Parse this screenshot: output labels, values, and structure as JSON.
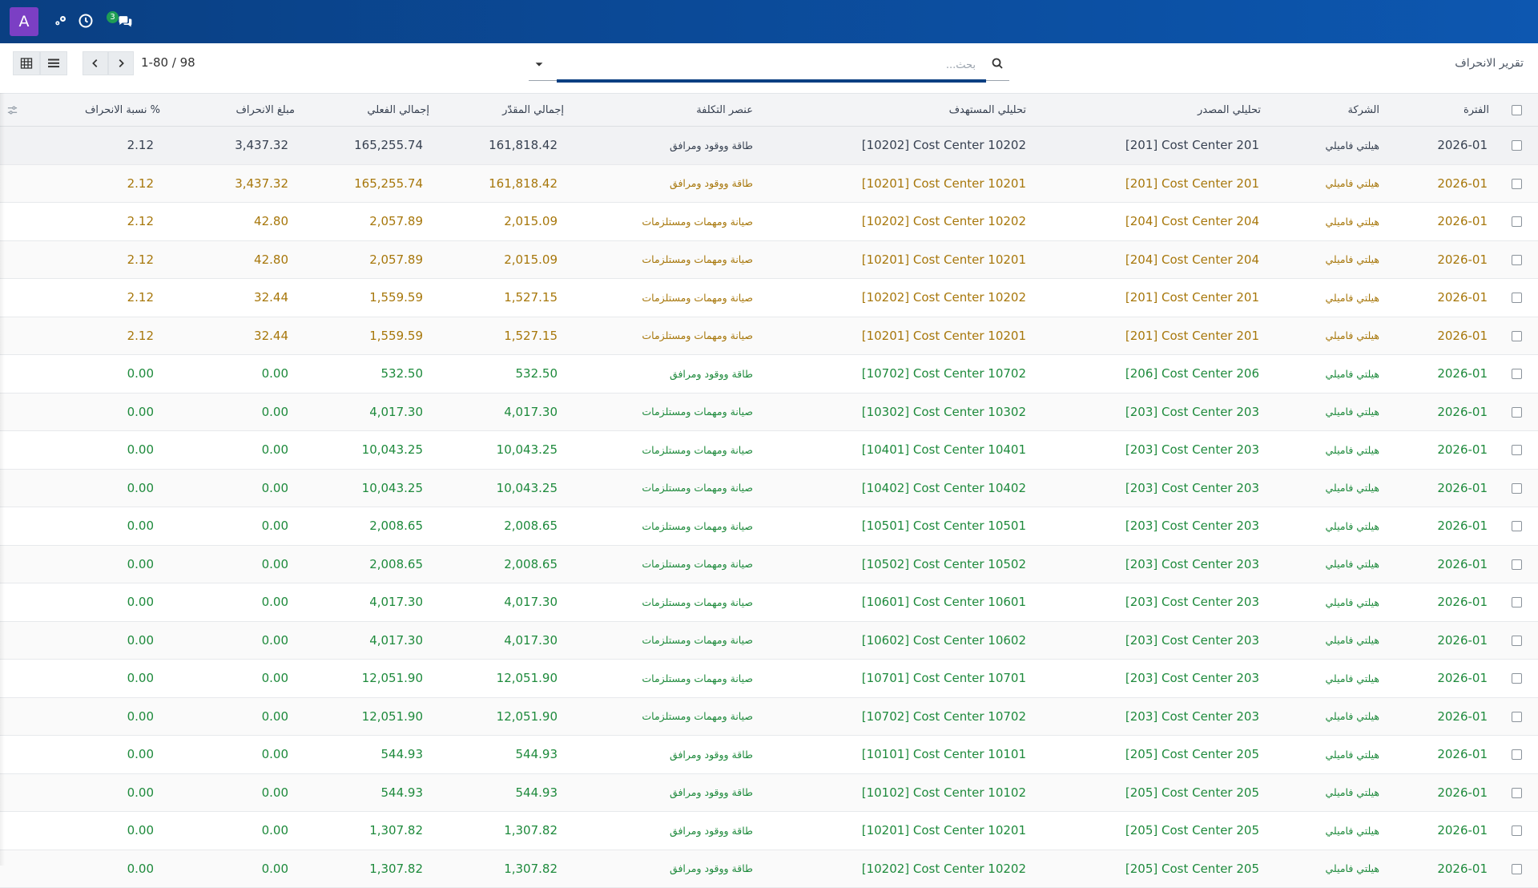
{
  "navbar": {
    "avatar_letter": "A",
    "icons": [
      "activity-icon",
      "clock-icon",
      "chat-icon"
    ],
    "chat_badge": "3",
    "background": "#0b4a98"
  },
  "control_panel": {
    "breadcrumb": "تقرير الانحراف",
    "search_placeholder": "بحث...",
    "pager_value": "1-80 / 98",
    "view_buttons": [
      "list-view-icon",
      "pivot-view-icon"
    ]
  },
  "table": {
    "headers": {
      "period": "الفترة",
      "company": "الشركة",
      "source": "تحليلي المصدر",
      "target": "تحليلي المستهدف",
      "cost_element": "عنصر التكلفة",
      "estimated": "إجمالي المقدّر",
      "actual": "إجمالي الفعلي",
      "variance": "مبلغ الانحراف",
      "variance_pct": "نسبة الانحراف %"
    },
    "colors": {
      "default": "#374151",
      "warning": "#a7770b",
      "success": "#1e8a3c"
    },
    "rows": [
      {
        "status": "default",
        "period": "2026-01",
        "company": "هيلتي فاميلي",
        "source": "[201] Cost Center 201",
        "target": "[10202] Cost Center 10202",
        "cost_element": "طاقة ووقود ومرافق",
        "estimated": "161,818.42",
        "actual": "165,255.74",
        "variance": "3,437.32",
        "variance_pct": "2.12"
      },
      {
        "status": "warning",
        "period": "2026-01",
        "company": "هيلتي فاميلي",
        "source": "[201] Cost Center 201",
        "target": "[10201] Cost Center 10201",
        "cost_element": "طاقة ووقود ومرافق",
        "estimated": "161,818.42",
        "actual": "165,255.74",
        "variance": "3,437.32",
        "variance_pct": "2.12"
      },
      {
        "status": "warning",
        "period": "2026-01",
        "company": "هيلتي فاميلي",
        "source": "[204] Cost Center 204",
        "target": "[10202] Cost Center 10202",
        "cost_element": "صيانة ومهمات ومستلزمات",
        "estimated": "2,015.09",
        "actual": "2,057.89",
        "variance": "42.80",
        "variance_pct": "2.12"
      },
      {
        "status": "warning",
        "period": "2026-01",
        "company": "هيلتي فاميلي",
        "source": "[204] Cost Center 204",
        "target": "[10201] Cost Center 10201",
        "cost_element": "صيانة ومهمات ومستلزمات",
        "estimated": "2,015.09",
        "actual": "2,057.89",
        "variance": "42.80",
        "variance_pct": "2.12"
      },
      {
        "status": "warning",
        "period": "2026-01",
        "company": "هيلتي فاميلي",
        "source": "[201] Cost Center 201",
        "target": "[10202] Cost Center 10202",
        "cost_element": "صيانة ومهمات ومستلزمات",
        "estimated": "1,527.15",
        "actual": "1,559.59",
        "variance": "32.44",
        "variance_pct": "2.12"
      },
      {
        "status": "warning",
        "period": "2026-01",
        "company": "هيلتي فاميلي",
        "source": "[201] Cost Center 201",
        "target": "[10201] Cost Center 10201",
        "cost_element": "صيانة ومهمات ومستلزمات",
        "estimated": "1,527.15",
        "actual": "1,559.59",
        "variance": "32.44",
        "variance_pct": "2.12"
      },
      {
        "status": "success",
        "period": "2026-01",
        "company": "هيلتي فاميلي",
        "source": "[206] Cost Center 206",
        "target": "[10702] Cost Center 10702",
        "cost_element": "طاقة ووقود ومرافق",
        "estimated": "532.50",
        "actual": "532.50",
        "variance": "0.00",
        "variance_pct": "0.00"
      },
      {
        "status": "success",
        "period": "2026-01",
        "company": "هيلتي فاميلي",
        "source": "[203] Cost Center 203",
        "target": "[10302] Cost Center 10302",
        "cost_element": "صيانة ومهمات ومستلزمات",
        "estimated": "4,017.30",
        "actual": "4,017.30",
        "variance": "0.00",
        "variance_pct": "0.00"
      },
      {
        "status": "success",
        "period": "2026-01",
        "company": "هيلتي فاميلي",
        "source": "[203] Cost Center 203",
        "target": "[10401] Cost Center 10401",
        "cost_element": "صيانة ومهمات ومستلزمات",
        "estimated": "10,043.25",
        "actual": "10,043.25",
        "variance": "0.00",
        "variance_pct": "0.00"
      },
      {
        "status": "success",
        "period": "2026-01",
        "company": "هيلتي فاميلي",
        "source": "[203] Cost Center 203",
        "target": "[10402] Cost Center 10402",
        "cost_element": "صيانة ومهمات ومستلزمات",
        "estimated": "10,043.25",
        "actual": "10,043.25",
        "variance": "0.00",
        "variance_pct": "0.00"
      },
      {
        "status": "success",
        "period": "2026-01",
        "company": "هيلتي فاميلي",
        "source": "[203] Cost Center 203",
        "target": "[10501] Cost Center 10501",
        "cost_element": "صيانة ومهمات ومستلزمات",
        "estimated": "2,008.65",
        "actual": "2,008.65",
        "variance": "0.00",
        "variance_pct": "0.00"
      },
      {
        "status": "success",
        "period": "2026-01",
        "company": "هيلتي فاميلي",
        "source": "[203] Cost Center 203",
        "target": "[10502] Cost Center 10502",
        "cost_element": "صيانة ومهمات ومستلزمات",
        "estimated": "2,008.65",
        "actual": "2,008.65",
        "variance": "0.00",
        "variance_pct": "0.00"
      },
      {
        "status": "success",
        "period": "2026-01",
        "company": "هيلتي فاميلي",
        "source": "[203] Cost Center 203",
        "target": "[10601] Cost Center 10601",
        "cost_element": "صيانة ومهمات ومستلزمات",
        "estimated": "4,017.30",
        "actual": "4,017.30",
        "variance": "0.00",
        "variance_pct": "0.00"
      },
      {
        "status": "success",
        "period": "2026-01",
        "company": "هيلتي فاميلي",
        "source": "[203] Cost Center 203",
        "target": "[10602] Cost Center 10602",
        "cost_element": "صيانة ومهمات ومستلزمات",
        "estimated": "4,017.30",
        "actual": "4,017.30",
        "variance": "0.00",
        "variance_pct": "0.00"
      },
      {
        "status": "success",
        "period": "2026-01",
        "company": "هيلتي فاميلي",
        "source": "[203] Cost Center 203",
        "target": "[10701] Cost Center 10701",
        "cost_element": "صيانة ومهمات ومستلزمات",
        "estimated": "12,051.90",
        "actual": "12,051.90",
        "variance": "0.00",
        "variance_pct": "0.00"
      },
      {
        "status": "success",
        "period": "2026-01",
        "company": "هيلتي فاميلي",
        "source": "[203] Cost Center 203",
        "target": "[10702] Cost Center 10702",
        "cost_element": "صيانة ومهمات ومستلزمات",
        "estimated": "12,051.90",
        "actual": "12,051.90",
        "variance": "0.00",
        "variance_pct": "0.00"
      },
      {
        "status": "success",
        "period": "2026-01",
        "company": "هيلتي فاميلي",
        "source": "[205] Cost Center 205",
        "target": "[10101] Cost Center 10101",
        "cost_element": "طاقة ووقود ومرافق",
        "estimated": "544.93",
        "actual": "544.93",
        "variance": "0.00",
        "variance_pct": "0.00"
      },
      {
        "status": "success",
        "period": "2026-01",
        "company": "هيلتي فاميلي",
        "source": "[205] Cost Center 205",
        "target": "[10102] Cost Center 10102",
        "cost_element": "طاقة ووقود ومرافق",
        "estimated": "544.93",
        "actual": "544.93",
        "variance": "0.00",
        "variance_pct": "0.00"
      },
      {
        "status": "success",
        "period": "2026-01",
        "company": "هيلتي فاميلي",
        "source": "[205] Cost Center 205",
        "target": "[10201] Cost Center 10201",
        "cost_element": "طاقة ووقود ومرافق",
        "estimated": "1,307.82",
        "actual": "1,307.82",
        "variance": "0.00",
        "variance_pct": "0.00"
      },
      {
        "status": "success",
        "period": "2026-01",
        "company": "هيلتي فاميلي",
        "source": "[205] Cost Center 205",
        "target": "[10202] Cost Center 10202",
        "cost_element": "طاقة ووقود ومرافق",
        "estimated": "1,307.82",
        "actual": "1,307.82",
        "variance": "0.00",
        "variance_pct": "0.00"
      }
    ]
  }
}
